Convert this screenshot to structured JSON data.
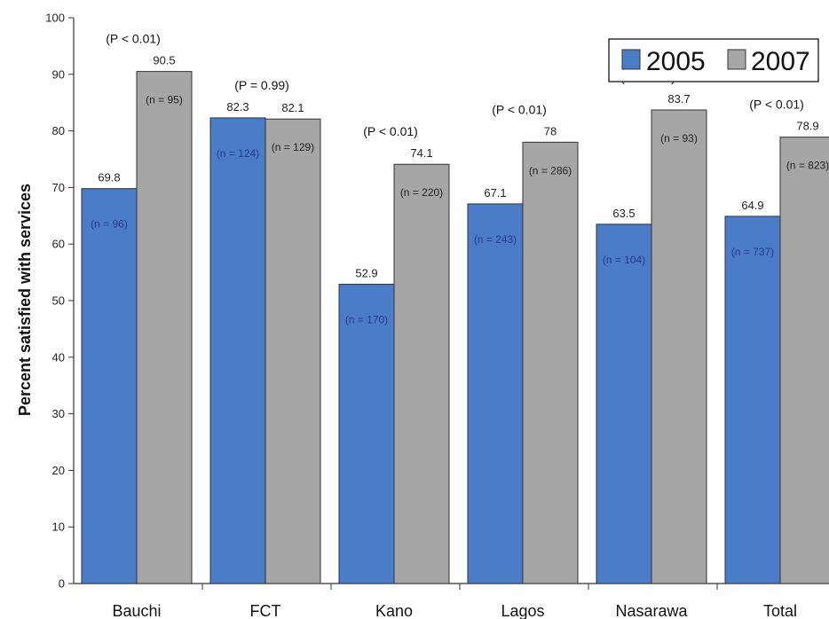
{
  "chart_data": {
    "type": "bar",
    "title": "",
    "xlabel": "",
    "ylabel": "Percent satisfied with services",
    "ylim": [
      0,
      100
    ],
    "yticks": [
      0,
      10,
      20,
      30,
      40,
      50,
      60,
      70,
      80,
      90,
      100
    ],
    "categories": [
      "Bauchi",
      "FCT",
      "Kano",
      "Lagos",
      "Nasarawa",
      "Total"
    ],
    "series": [
      {
        "name": "2005",
        "color": "#4a7cc7",
        "values": [
          69.8,
          82.3,
          52.9,
          67.1,
          63.5,
          64.9
        ],
        "value_labels": [
          "69.8",
          "82.3",
          "52.9",
          "67.1",
          "63.5",
          "64.9"
        ],
        "n_labels": [
          "(n = 96)",
          "(n = 124)",
          "(n = 170)",
          "(n = 243)",
          "(n = 104)",
          "(n = 737)"
        ]
      },
      {
        "name": "2007",
        "color": "#a6a6a6",
        "values": [
          90.5,
          82.1,
          74.1,
          78,
          83.7,
          78.9
        ],
        "value_labels": [
          "90.5",
          "82.1",
          "74.1",
          "78",
          "83.7",
          "78.9"
        ],
        "n_labels": [
          "(n = 95)",
          "(n = 129)",
          "(n = 220)",
          "(n = 286)",
          "(n = 93)",
          "(n = 823)"
        ]
      }
    ],
    "p_values": [
      "(P < 0.01)",
      "(P = 0.99)",
      "(P < 0.01)",
      "(P < 0.01)",
      "(P < 0.01)",
      "(P < 0.01)"
    ],
    "legend": {
      "position": "top-right",
      "entries": [
        "2005",
        "2007"
      ]
    },
    "grid": false
  }
}
